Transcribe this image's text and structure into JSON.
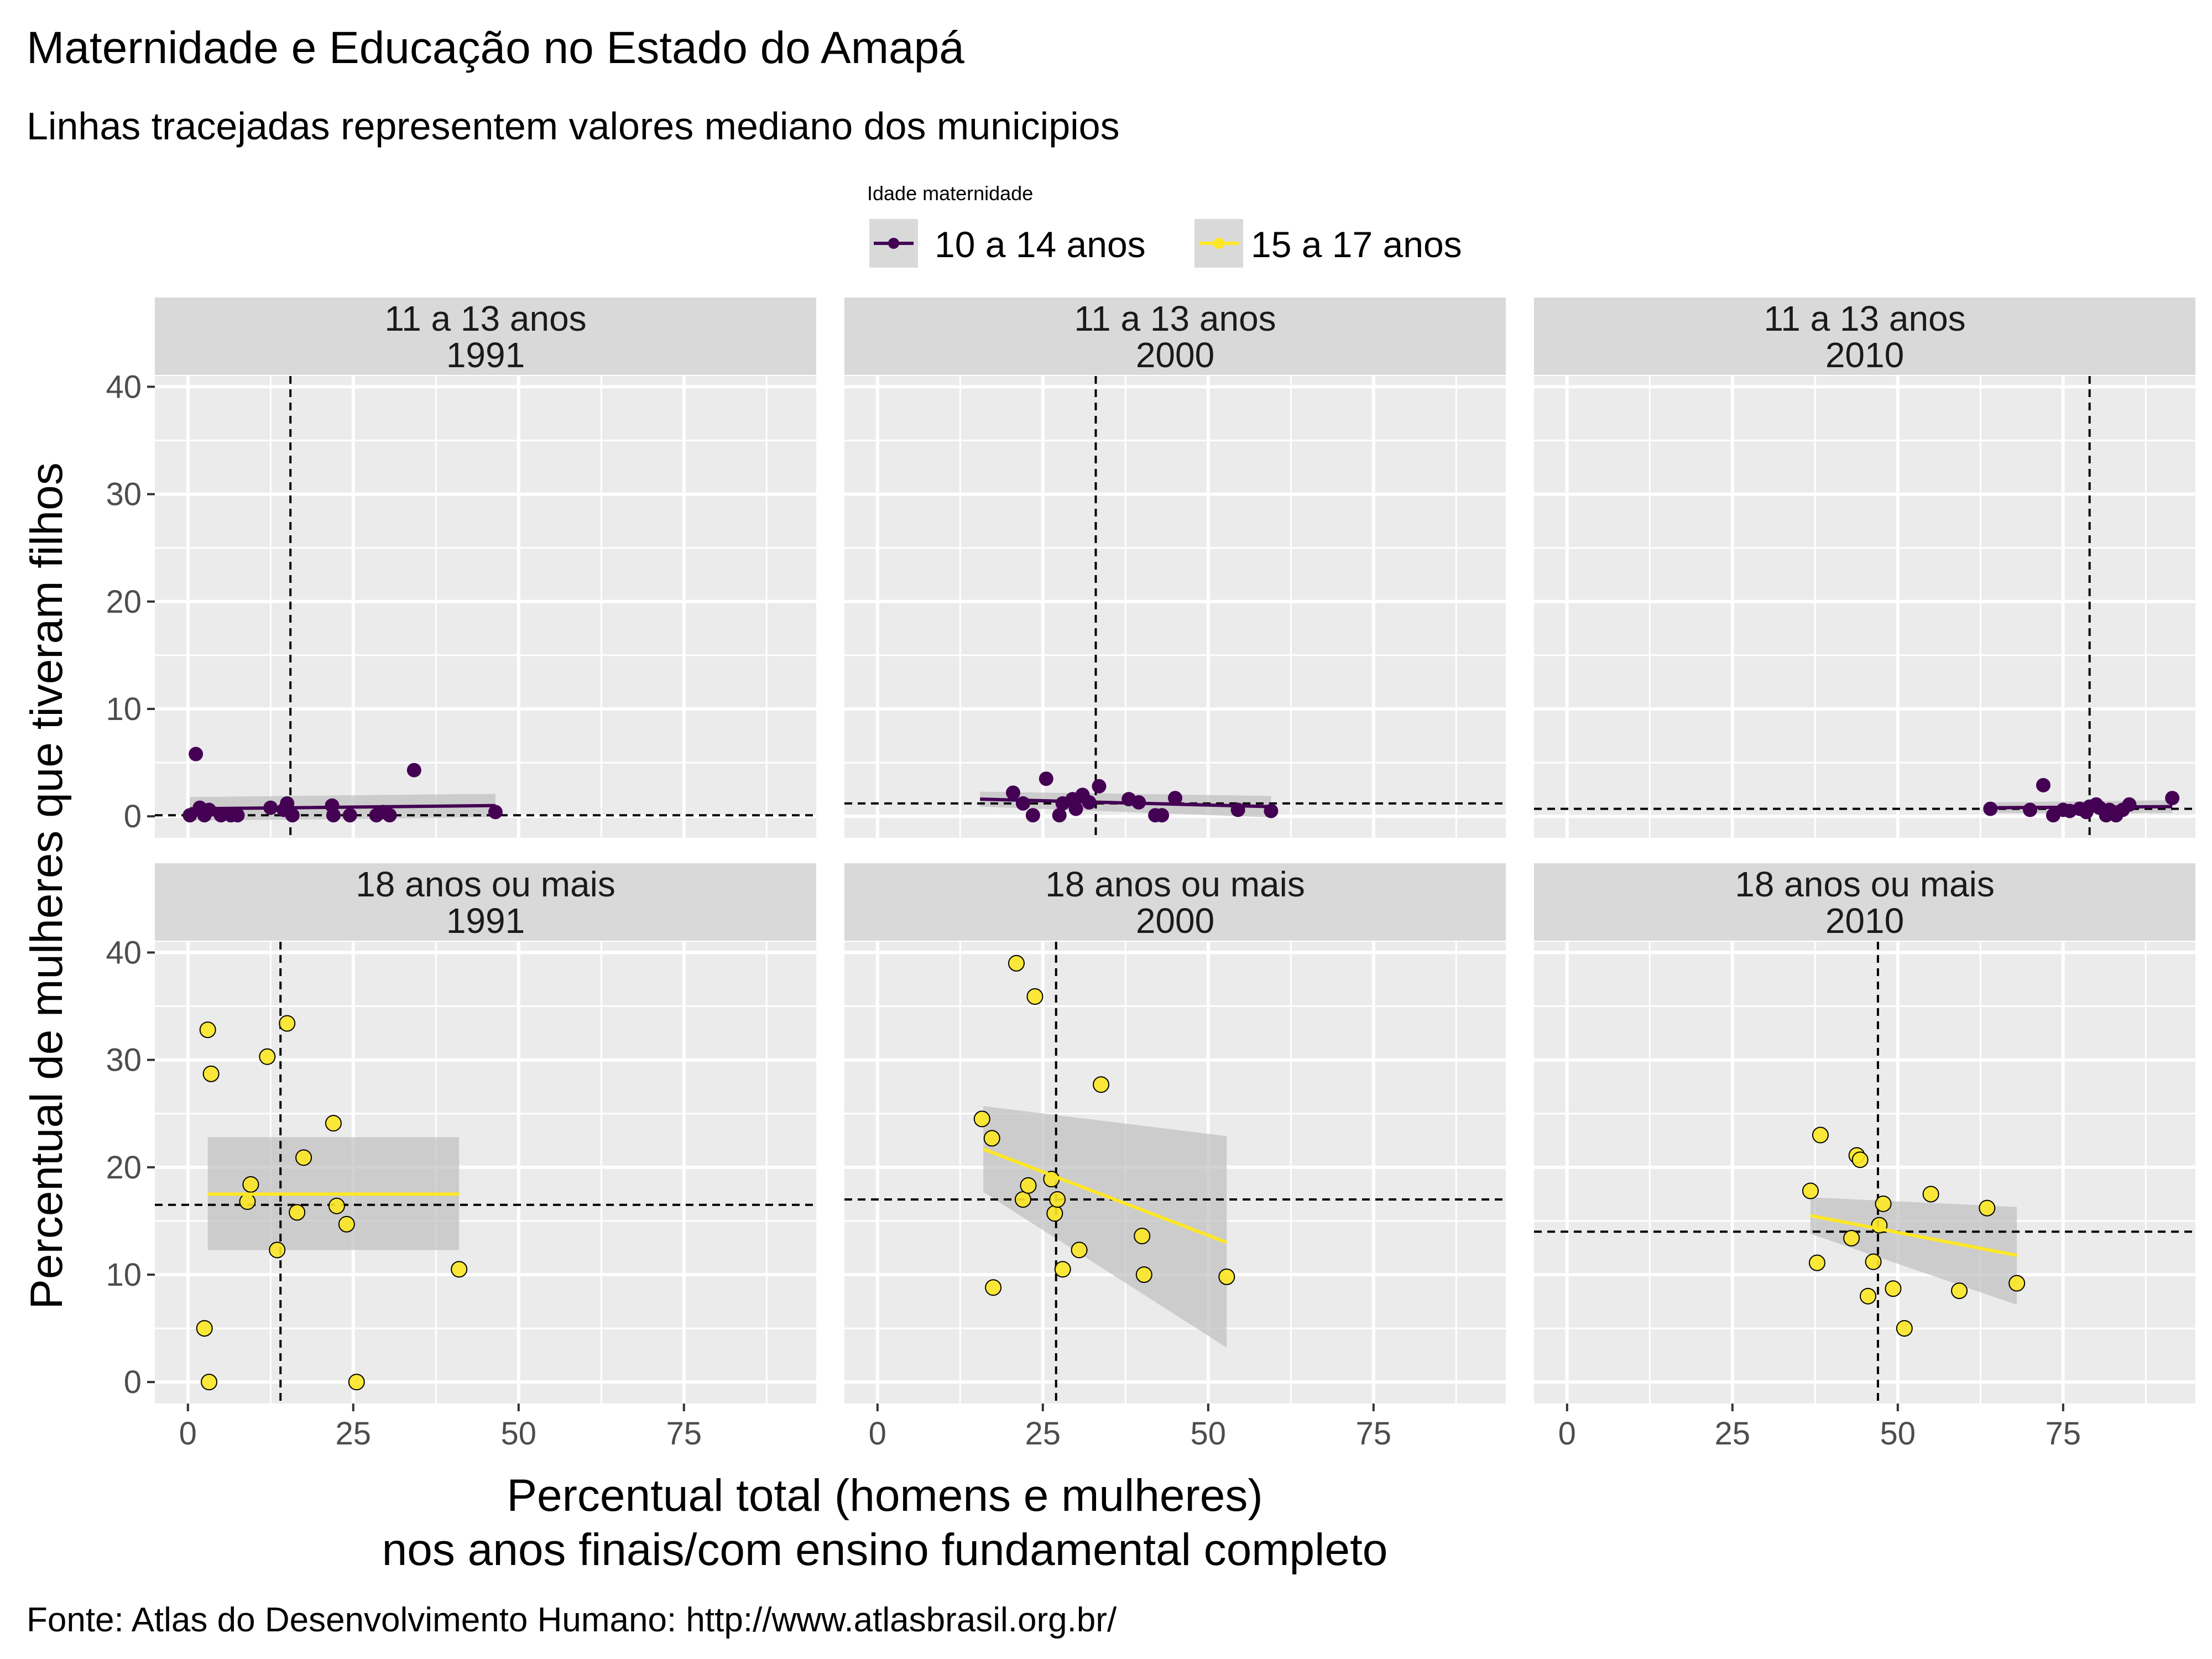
{
  "header": {
    "title": "Maternidade e Educação no Estado do Amapá",
    "subtitle": "Linhas tracejadas representem valores mediano dos municipios"
  },
  "legend": {
    "title": "Idade maternidade",
    "placement": "top",
    "items": [
      {
        "label": "10 a 14 anos",
        "color": "#440154"
      },
      {
        "label": "15 a 17 anos",
        "color": "#FDE725"
      }
    ]
  },
  "axes": {
    "xlabel_line1": "Percentual total (homens e mulheres)",
    "xlabel_line2": "nos anos finais/com ensino fundamental completo",
    "ylabel": "Percentual de mulheres que tiveram filhos"
  },
  "caption": "Fonte: Atlas do Desenvolvimento Humano: http://www.atlasbrasil.org.br/",
  "colors": {
    "panel_bg": "#EBEBEB",
    "strip_bg": "#D9D9D9",
    "grid": "#FFFFFF",
    "ribbon": "#BFBFBF",
    "series_10_14": "#440154",
    "series_15_17": "#FDE725"
  },
  "chart_data": {
    "type": "scatter",
    "facets": "grid",
    "xlim": [
      -5,
      95
    ],
    "ylim": [
      -2,
      41
    ],
    "x_ticks": [
      0,
      25,
      50,
      75
    ],
    "y_ticks": [
      0,
      10,
      20,
      30,
      40
    ],
    "x_tick_labels": [
      "0",
      "25",
      "50",
      "75"
    ],
    "y_tick_labels": [
      "0",
      "10",
      "20",
      "30",
      "40"
    ],
    "grid": true,
    "panels": [
      {
        "row_label": "11 a 13 anos",
        "col_label": "1991",
        "series": "10 a 14 anos",
        "median_x": 15.5,
        "median_y": 0.1,
        "fit": {
          "x": [
            0.3,
            46.5
          ],
          "y": [
            0.7,
            1.0
          ],
          "ribbon_upper": [
            1.8,
            2.1
          ],
          "ribbon_lower": [
            -0.4,
            -0.1
          ]
        },
        "points": [
          [
            0.3,
            0.1
          ],
          [
            1.2,
            5.8
          ],
          [
            1.8,
            0.8
          ],
          [
            2.5,
            0.1
          ],
          [
            3.2,
            0.6
          ],
          [
            5.0,
            0.1
          ],
          [
            6.5,
            0.1
          ],
          [
            7.5,
            0.1
          ],
          [
            12.5,
            0.8
          ],
          [
            14.5,
            0.6
          ],
          [
            15.0,
            1.2
          ],
          [
            15.8,
            0.1
          ],
          [
            21.8,
            1.0
          ],
          [
            22.0,
            0.1
          ],
          [
            24.5,
            0.1
          ],
          [
            28.5,
            0.1
          ],
          [
            29.5,
            0.4
          ],
          [
            30.5,
            0.1
          ],
          [
            34.2,
            4.3
          ],
          [
            46.5,
            0.4
          ]
        ]
      },
      {
        "row_label": "11 a 13 anos",
        "col_label": "2000",
        "series": "10 a 14 anos",
        "median_x": 33.0,
        "median_y": 1.2,
        "fit": {
          "x": [
            15.5,
            59.5
          ],
          "y": [
            1.6,
            0.9
          ],
          "ribbon_upper": [
            2.3,
            1.9
          ],
          "ribbon_lower": [
            0.9,
            -0.1
          ]
        },
        "points": [
          [
            20.5,
            2.2
          ],
          [
            22.0,
            1.2
          ],
          [
            23.5,
            0.1
          ],
          [
            25.5,
            3.5
          ],
          [
            27.5,
            0.1
          ],
          [
            28.0,
            1.2
          ],
          [
            29.5,
            1.6
          ],
          [
            30.0,
            0.7
          ],
          [
            31.0,
            2.0
          ],
          [
            32.0,
            1.3
          ],
          [
            33.5,
            2.8
          ],
          [
            38.0,
            1.6
          ],
          [
            39.5,
            1.3
          ],
          [
            42.0,
            0.1
          ],
          [
            43.0,
            0.1
          ],
          [
            45.0,
            1.7
          ],
          [
            54.5,
            0.6
          ],
          [
            59.5,
            0.5
          ]
        ]
      },
      {
        "row_label": "11 a 13 anos",
        "col_label": "2010",
        "series": "10 a 14 anos",
        "median_x": 79.0,
        "median_y": 0.7,
        "fit": {
          "x": [
            64.0,
            91.5
          ],
          "y": [
            0.8,
            0.9
          ],
          "ribbon_upper": [
            1.3,
            1.5
          ],
          "ribbon_lower": [
            0.3,
            0.3
          ]
        },
        "points": [
          [
            64.0,
            0.7
          ],
          [
            70.0,
            0.6
          ],
          [
            72.0,
            2.9
          ],
          [
            73.5,
            0.1
          ],
          [
            75.0,
            0.6
          ],
          [
            76.0,
            0.5
          ],
          [
            77.5,
            0.7
          ],
          [
            78.5,
            0.4
          ],
          [
            79.0,
            0.9
          ],
          [
            80.0,
            1.1
          ],
          [
            80.5,
            0.8
          ],
          [
            81.5,
            0.1
          ],
          [
            82.0,
            0.6
          ],
          [
            83.0,
            0.1
          ],
          [
            84.0,
            0.6
          ],
          [
            85.0,
            1.1
          ],
          [
            91.5,
            1.7
          ]
        ]
      },
      {
        "row_label": "18 anos ou mais",
        "col_label": "1991",
        "series": "15 a 17 anos",
        "median_x": 14.0,
        "median_y": 16.5,
        "fit": {
          "x": [
            3.0,
            41.0
          ],
          "y": [
            17.5,
            17.5
          ],
          "ribbon_upper": [
            22.8,
            22.8
          ],
          "ribbon_lower": [
            12.3,
            12.3
          ]
        },
        "points": [
          [
            2.5,
            5.0
          ],
          [
            3.0,
            32.8
          ],
          [
            3.2,
            0.0
          ],
          [
            3.5,
            28.7
          ],
          [
            9.0,
            16.8
          ],
          [
            9.5,
            18.4
          ],
          [
            12.0,
            30.3
          ],
          [
            13.5,
            12.3
          ],
          [
            15.0,
            33.4
          ],
          [
            16.5,
            15.8
          ],
          [
            17.5,
            20.9
          ],
          [
            22.0,
            24.1
          ],
          [
            22.5,
            16.4
          ],
          [
            24.0,
            14.7
          ],
          [
            25.5,
            0.0
          ],
          [
            41.0,
            10.5
          ]
        ]
      },
      {
        "row_label": "18 anos ou mais",
        "col_label": "2000",
        "series": "15 a 17 anos",
        "median_x": 27.0,
        "median_y": 17.0,
        "fit": {
          "x": [
            16.0,
            52.8
          ],
          "y": [
            21.7,
            13.0
          ],
          "ribbon_upper": [
            25.7,
            22.9
          ],
          "ribbon_lower": [
            17.7,
            3.2
          ]
        },
        "points": [
          [
            15.8,
            24.5
          ],
          [
            17.3,
            22.7
          ],
          [
            17.5,
            8.8
          ],
          [
            21.0,
            39.0
          ],
          [
            22.0,
            17.0
          ],
          [
            22.8,
            18.3
          ],
          [
            23.8,
            35.9
          ],
          [
            26.3,
            18.9
          ],
          [
            26.8,
            15.7
          ],
          [
            27.2,
            17.0
          ],
          [
            28.0,
            10.5
          ],
          [
            30.5,
            12.3
          ],
          [
            33.8,
            27.7
          ],
          [
            40.0,
            13.6
          ],
          [
            40.3,
            10.0
          ],
          [
            52.8,
            9.8
          ]
        ]
      },
      {
        "row_label": "18 anos ou mais",
        "col_label": "2010",
        "series": "15 a 17 anos",
        "median_x": 47.0,
        "median_y": 14.0,
        "fit": {
          "x": [
            36.8,
            68.0
          ],
          "y": [
            15.5,
            11.8
          ],
          "ribbon_upper": [
            17.2,
            16.3
          ],
          "ribbon_lower": [
            13.8,
            7.2
          ]
        },
        "points": [
          [
            36.8,
            17.8
          ],
          [
            37.8,
            11.1
          ],
          [
            38.3,
            23.0
          ],
          [
            43.0,
            13.4
          ],
          [
            43.8,
            21.1
          ],
          [
            44.3,
            20.7
          ],
          [
            45.5,
            8.0
          ],
          [
            46.3,
            11.2
          ],
          [
            47.2,
            14.6
          ],
          [
            47.8,
            16.6
          ],
          [
            49.3,
            8.7
          ],
          [
            51.0,
            5.0
          ],
          [
            55.0,
            17.5
          ],
          [
            59.3,
            8.5
          ],
          [
            63.5,
            16.2
          ],
          [
            68.0,
            9.2
          ]
        ]
      }
    ]
  }
}
